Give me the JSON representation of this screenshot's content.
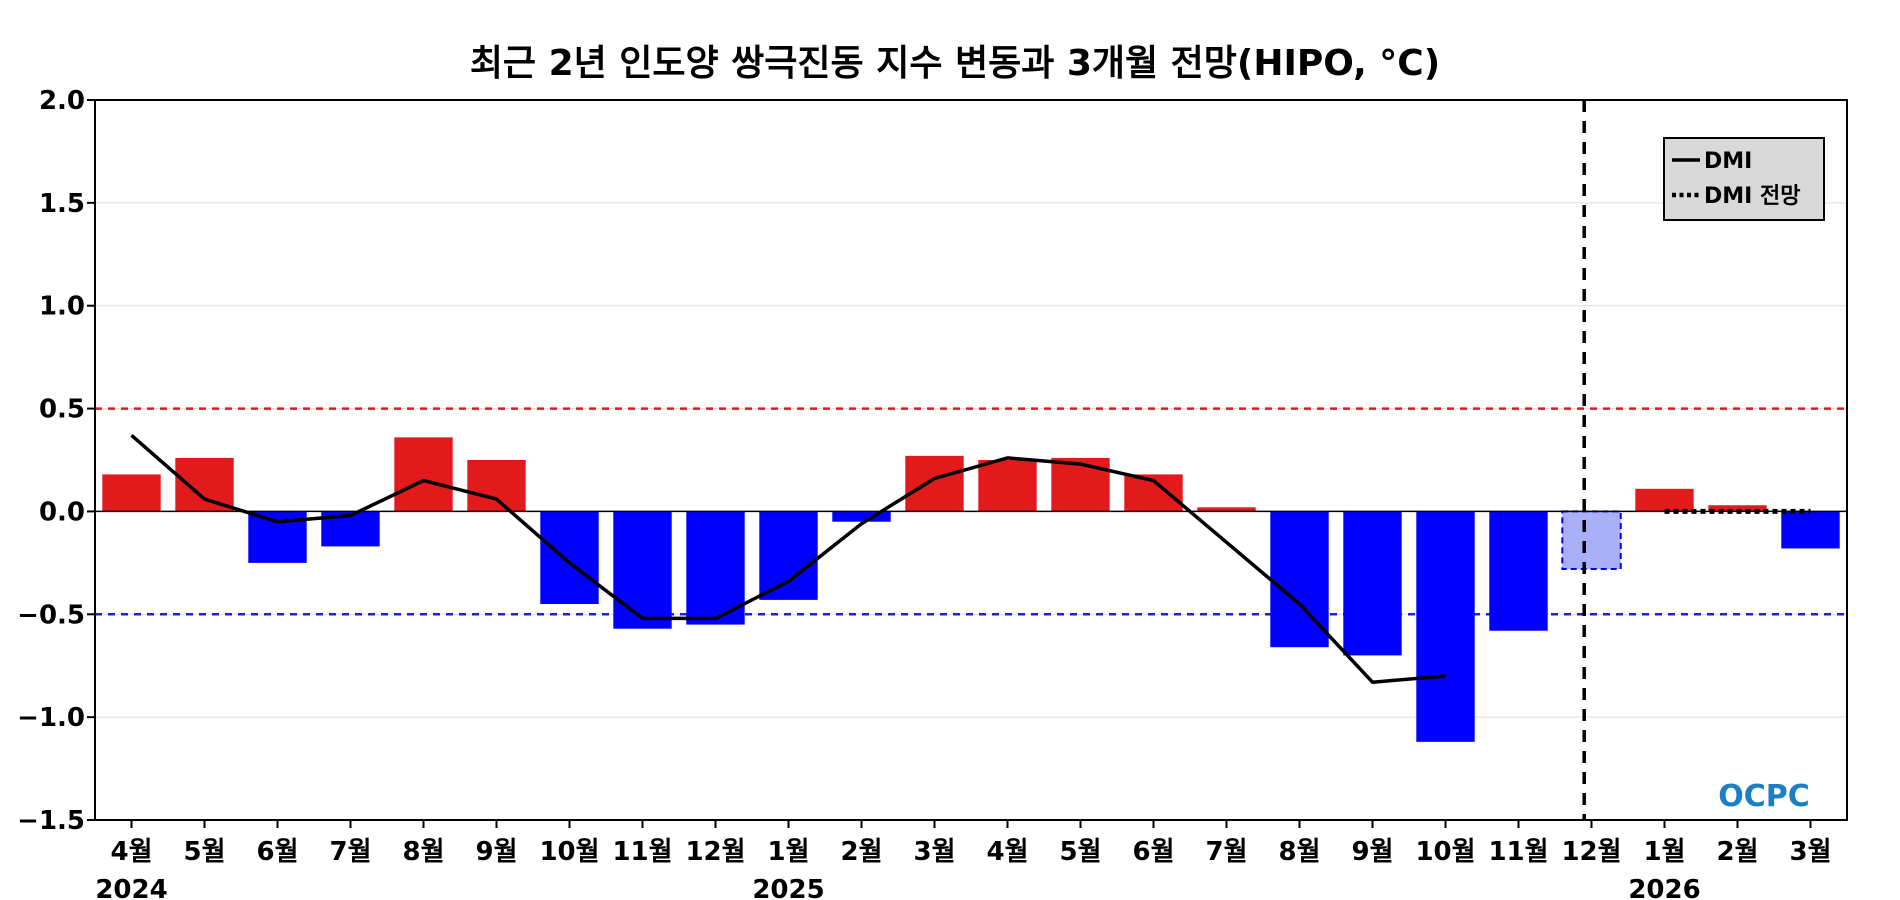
{
  "chart_data": {
    "type": "bar",
    "title": "최근 2년 인도양 쌍극진동 지수 변동과 3개월 전망(HIPO, °C)",
    "categories": [
      "4월",
      "5월",
      "6월",
      "7월",
      "8월",
      "9월",
      "10월",
      "11월",
      "12월",
      "1월",
      "2월",
      "3월",
      "4월",
      "5월",
      "6월",
      "7월",
      "8월",
      "9월",
      "10월",
      "11월",
      "12월",
      "1월",
      "2월",
      "3월"
    ],
    "year_labels": [
      {
        "label": "2024",
        "category_index": 0
      },
      {
        "label": "2025",
        "category_index": 9
      },
      {
        "label": "2026",
        "category_index": 21
      }
    ],
    "bars": [
      0.18,
      0.26,
      -0.25,
      -0.17,
      0.36,
      0.25,
      -0.45,
      -0.57,
      -0.55,
      -0.43,
      -0.05,
      0.27,
      0.25,
      0.26,
      0.18,
      0.02,
      -0.66,
      -0.7,
      -1.12,
      -0.58,
      -0.28,
      0.11,
      0.03,
      -0.18
    ],
    "bar_kind": [
      "obs",
      "obs",
      "obs",
      "obs",
      "obs",
      "obs",
      "obs",
      "obs",
      "obs",
      "obs",
      "obs",
      "obs",
      "obs",
      "obs",
      "obs",
      "obs",
      "obs",
      "obs",
      "obs",
      "obs",
      "current",
      "forecast",
      "forecast",
      "forecast"
    ],
    "series": [
      {
        "name": "DMI",
        "style": "solid",
        "color": "#000000",
        "values": [
          0.37,
          0.06,
          -0.05,
          -0.02,
          0.15,
          0.06,
          -0.25,
          -0.52,
          -0.52,
          -0.34,
          -0.06,
          0.16,
          0.26,
          0.23,
          0.15,
          -0.15,
          -0.45,
          -0.83,
          -0.8,
          null,
          null,
          null,
          null,
          null
        ]
      },
      {
        "name": "DMI 전망",
        "style": "dotted",
        "color": "#000000",
        "values": [
          null,
          null,
          null,
          null,
          null,
          null,
          null,
          null,
          null,
          null,
          null,
          null,
          null,
          null,
          null,
          null,
          null,
          null,
          null,
          null,
          null,
          0.0,
          0.0,
          0.0
        ]
      }
    ],
    "ylim": [
      -1.5,
      2.0
    ],
    "yticks": [
      "2.0",
      "1.5",
      "1.0",
      "0.5",
      "0.0",
      "−0.5",
      "−1.0",
      "−1.5"
    ],
    "ytick_values": [
      2.0,
      1.5,
      1.0,
      0.5,
      0.0,
      -0.5,
      -1.0,
      -1.5
    ],
    "thresholds": [
      {
        "value": 0.5,
        "color": "#e31a1c"
      },
      {
        "value": -0.5,
        "color": "#1f1fe0"
      }
    ],
    "forecast_divider_index": 20,
    "legend_position": "top-right",
    "grid": true,
    "colors": {
      "positive": "#e31a1c",
      "negative": "#0000ff",
      "current_fill": "#aab0f7",
      "current_border": "#0000ff",
      "grid": "#dddddd"
    }
  },
  "logo": {
    "text": "OCPC"
  }
}
